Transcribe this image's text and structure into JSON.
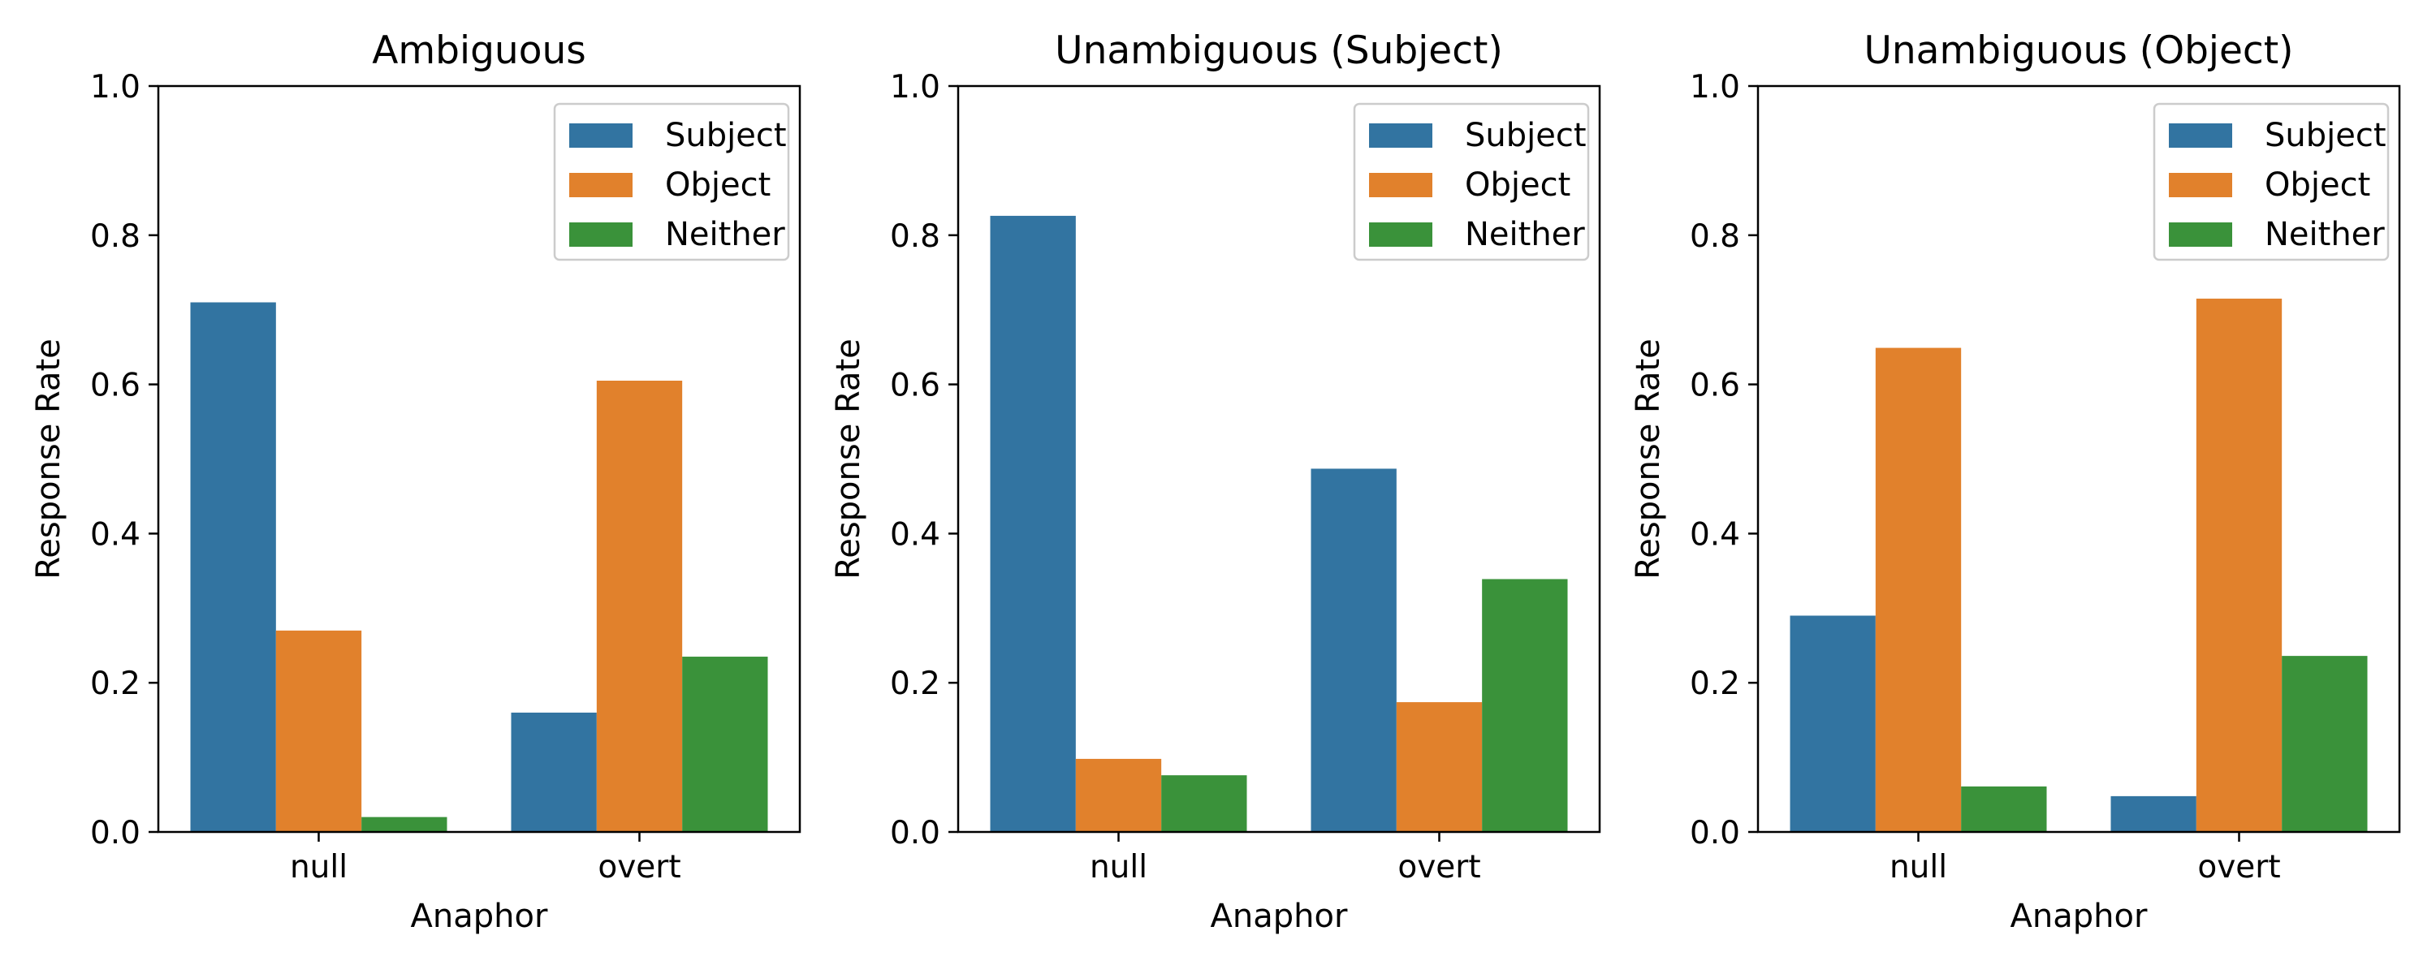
{
  "colors": {
    "Subject": "#3274a1",
    "Object": "#e1812c",
    "Neither": "#3a923a",
    "axes": "#000000",
    "legend_border": "#cccccc",
    "background": "#ffffff"
  },
  "chart_data": [
    {
      "type": "bar",
      "title": "Ambiguous",
      "xlabel": "Anaphor",
      "ylabel": "Response Rate",
      "categories": [
        "null",
        "overt"
      ],
      "ylim": [
        0,
        1.0
      ],
      "yticks": [
        "0.0",
        "0.2",
        "0.4",
        "0.6",
        "0.8",
        "1.0"
      ],
      "legend_position": "top-right",
      "grid": false,
      "series": [
        {
          "name": "Subject",
          "values": [
            0.71,
            0.16
          ]
        },
        {
          "name": "Object",
          "values": [
            0.27,
            0.605
          ]
        },
        {
          "name": "Neither",
          "values": [
            0.02,
            0.235
          ]
        }
      ]
    },
    {
      "type": "bar",
      "title": "Unambiguous (Subject)",
      "xlabel": "Anaphor",
      "ylabel": "Response Rate",
      "categories": [
        "null",
        "overt"
      ],
      "ylim": [
        0,
        1.0
      ],
      "yticks": [
        "0.0",
        "0.2",
        "0.4",
        "0.6",
        "0.8",
        "1.0"
      ],
      "legend_position": "top-right",
      "grid": false,
      "series": [
        {
          "name": "Subject",
          "values": [
            0.826,
            0.487
          ]
        },
        {
          "name": "Object",
          "values": [
            0.098,
            0.174
          ]
        },
        {
          "name": "Neither",
          "values": [
            0.076,
            0.339
          ]
        }
      ]
    },
    {
      "type": "bar",
      "title": "Unambiguous (Object)",
      "xlabel": "Anaphor",
      "ylabel": "Response Rate",
      "categories": [
        "null",
        "overt"
      ],
      "ylim": [
        0,
        1.0
      ],
      "yticks": [
        "0.0",
        "0.2",
        "0.4",
        "0.6",
        "0.8",
        "1.0"
      ],
      "legend_position": "top-right",
      "grid": false,
      "series": [
        {
          "name": "Subject",
          "values": [
            0.29,
            0.048
          ]
        },
        {
          "name": "Object",
          "values": [
            0.649,
            0.715
          ]
        },
        {
          "name": "Neither",
          "values": [
            0.061,
            0.236
          ]
        }
      ]
    }
  ]
}
